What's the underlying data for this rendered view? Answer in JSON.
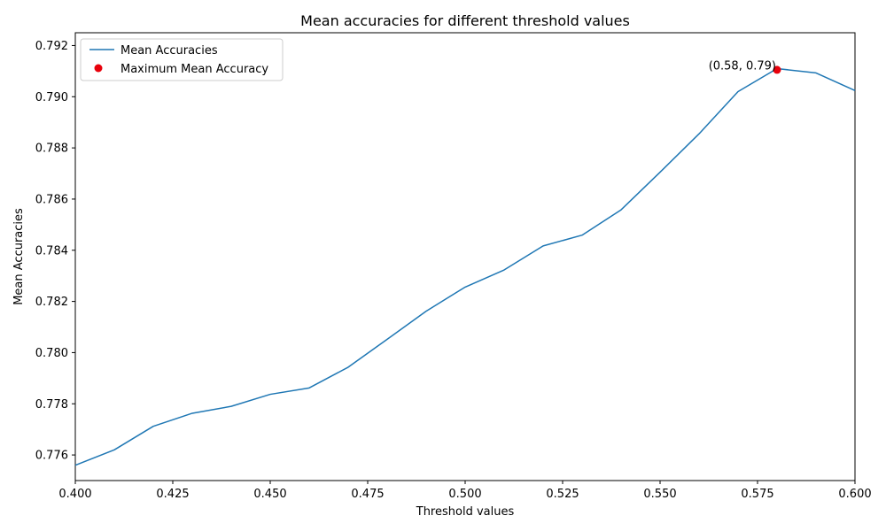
{
  "chart_data": {
    "type": "line",
    "title": "Mean accuracies for different threshold values",
    "xlabel": "Threshold values",
    "ylabel": "Mean Accuracies",
    "xlim": [
      0.4,
      0.6
    ],
    "ylim": [
      0.775,
      0.7925
    ],
    "xticks": [
      "0.400",
      "0.425",
      "0.450",
      "0.475",
      "0.500",
      "0.525",
      "0.550",
      "0.575",
      "0.600"
    ],
    "yticks": [
      "0.776",
      "0.778",
      "0.780",
      "0.782",
      "0.784",
      "0.786",
      "0.788",
      "0.790",
      "0.792"
    ],
    "grid": false,
    "legend_position": "top-left",
    "series": [
      {
        "name": "Mean Accuracies",
        "type": "line",
        "color": "#1f77b4",
        "x": [
          0.4,
          0.41,
          0.42,
          0.43,
          0.44,
          0.45,
          0.46,
          0.47,
          0.48,
          0.49,
          0.5,
          0.51,
          0.52,
          0.53,
          0.54,
          0.55,
          0.56,
          0.57,
          0.58,
          0.59,
          0.6
        ],
        "y": [
          0.7756,
          0.7762,
          0.77712,
          0.77763,
          0.7779,
          0.77837,
          0.77862,
          0.77943,
          0.78052,
          0.78162,
          0.78256,
          0.78323,
          0.78417,
          0.78459,
          0.78558,
          0.78705,
          0.78855,
          0.7902,
          0.7911,
          0.79093,
          0.79024
        ]
      },
      {
        "name": "Maximum Mean Accuracy",
        "type": "scatter",
        "color": "#e8000b",
        "x": [
          0.58
        ],
        "y": [
          0.79105
        ]
      }
    ],
    "annotations": [
      {
        "text": "(0.58, 0.79)",
        "x": 0.58,
        "y": 0.79105
      }
    ]
  }
}
